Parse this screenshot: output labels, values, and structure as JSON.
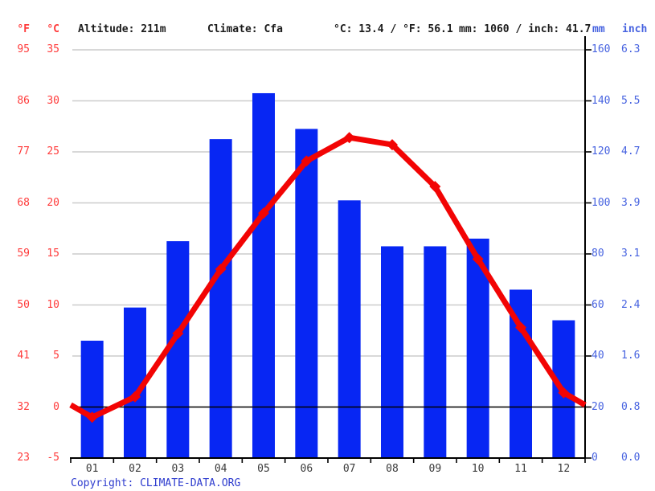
{
  "header": {
    "f_label": "°F",
    "c_label": "°C",
    "altitude": "Altitude: 211m",
    "climate": "Climate: Cfa",
    "temp_summary": "°C: 13.4 / °F: 56.1",
    "precip_summary": "mm: 1060 / inch: 41.7",
    "mm_label": "mm",
    "inch_label": "inch"
  },
  "axes": {
    "fahrenheit": [
      "95",
      "86",
      "77",
      "68",
      "59",
      "50",
      "41",
      "32",
      "23"
    ],
    "celsius": [
      "35",
      "30",
      "25",
      "20",
      "15",
      "10",
      "5",
      "0",
      "-5"
    ],
    "mm": [
      "160",
      "140",
      "120",
      "100",
      "80",
      "60",
      "40",
      "20",
      "0"
    ],
    "inch": [
      "6.3",
      "5.5",
      "4.7",
      "3.9",
      "3.1",
      "2.4",
      "1.6",
      "0.8",
      "0.0"
    ]
  },
  "chart_data": {
    "type": "combo",
    "categories": [
      "01",
      "02",
      "03",
      "04",
      "05",
      "06",
      "07",
      "08",
      "09",
      "10",
      "11",
      "12"
    ],
    "series": [
      {
        "name": "precipitation_mm",
        "type": "bar",
        "values": [
          46,
          59,
          85,
          125,
          143,
          129,
          101,
          83,
          83,
          86,
          66,
          54
        ]
      },
      {
        "name": "temperature_c",
        "type": "line",
        "values": [
          -1.0,
          1.0,
          7.2,
          13.5,
          19.0,
          24.1,
          26.4,
          25.7,
          21.6,
          14.5,
          7.8,
          1.4
        ]
      }
    ],
    "title": "",
    "xlabel": "",
    "ylabel_left": "°C / °F",
    "ylabel_right": "mm / inch",
    "ylim_temp_c": [
      -5,
      35
    ],
    "ylim_precip_mm": [
      0,
      160
    ],
    "grid": true,
    "zero_line_c": 0,
    "edge_extension": true,
    "legend": "none"
  },
  "copyright": {
    "prefix": "Copyright: ",
    "link": "CLIMATE-DATA.ORG"
  },
  "colors": {
    "bar": "#0726f3",
    "line": "#f20404",
    "red_text": "#ff3b3b",
    "blue_text": "#4763e0",
    "grid": "#cccccc",
    "axis": "#000000",
    "black_text": "#1c1c1c",
    "link": "#2d3bce"
  }
}
